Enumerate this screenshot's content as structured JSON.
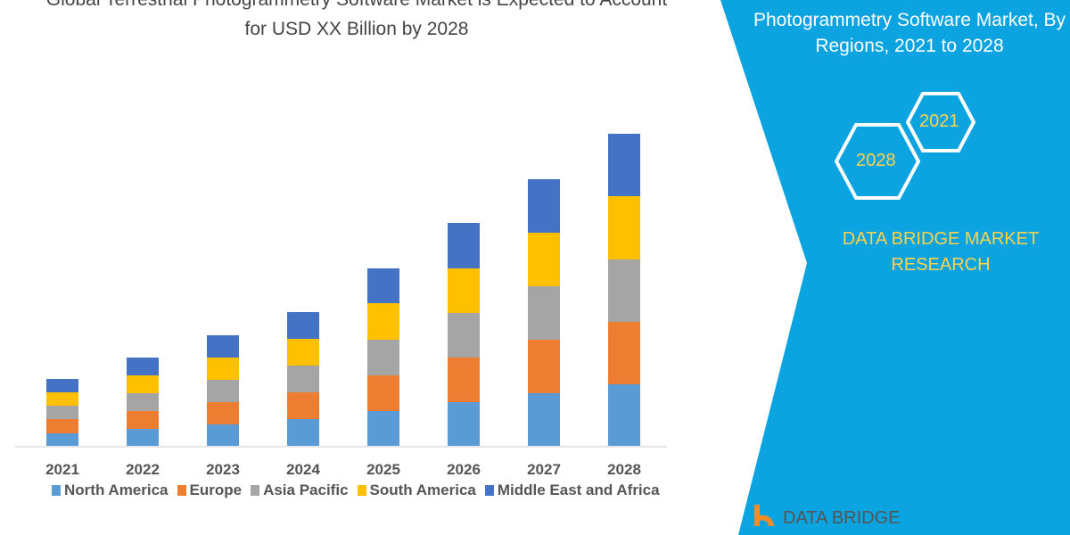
{
  "title_line1": "Global Terrestrial Photogrammetry Software Market is Expected to Account",
  "title_line2": "for USD XX Billion by 2028",
  "side_panel": {
    "title": "Photogrammetry Software Market, By Regions, 2021 to 2028",
    "hex_start": "2021",
    "hex_end": "2028",
    "brand": "DATA BRIDGE MARKET RESEARCH",
    "logo_text": "DATA BRIDGE",
    "color": "#0BA3E0"
  },
  "chart_data": {
    "type": "bar",
    "stacked": true,
    "categories": [
      "2021",
      "2022",
      "2023",
      "2024",
      "2025",
      "2026",
      "2027",
      "2028"
    ],
    "series": [
      {
        "name": "North America",
        "color": "#5B9BD5",
        "values": [
          14,
          19,
          24,
          30,
          39,
          49,
          59,
          69
        ]
      },
      {
        "name": "Europe",
        "color": "#ED7D31",
        "values": [
          16,
          20,
          25,
          30,
          40,
          50,
          60,
          70
        ]
      },
      {
        "name": "Asia Pacific",
        "color": "#A5A5A5",
        "values": [
          15,
          20,
          25,
          30,
          40,
          50,
          60,
          70
        ]
      },
      {
        "name": "South America",
        "color": "#FFC000",
        "values": [
          15,
          20,
          25,
          30,
          41,
          50,
          60,
          71
        ]
      },
      {
        "name": "Middle East and Africa",
        "color": "#4472C4",
        "values": [
          15,
          20,
          25,
          30,
          39,
          51,
          60,
          70
        ]
      }
    ],
    "y_axis_shown": false,
    "grid": false,
    "legend_position": "bottom"
  }
}
